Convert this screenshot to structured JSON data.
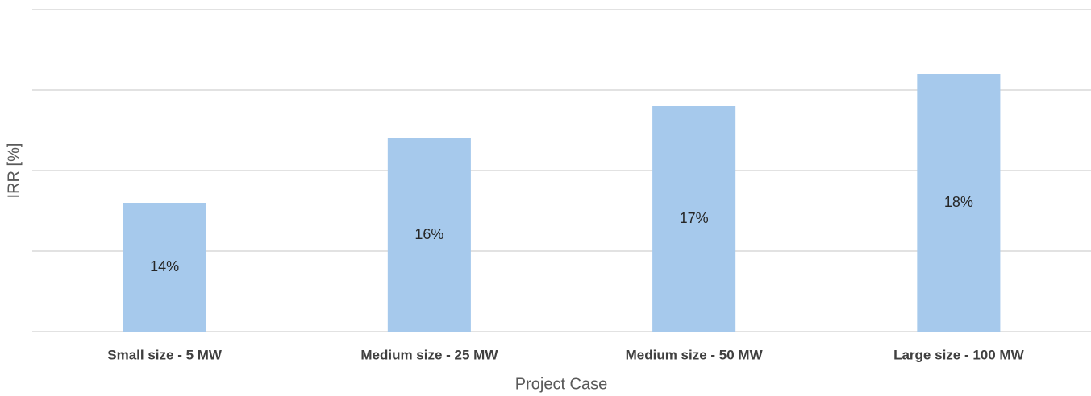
{
  "chart_data": {
    "type": "bar",
    "x_label": "Project Case",
    "y_label": "IRR [%]",
    "categories": [
      "Small size - 5 MW",
      "Medium size - 25 MW",
      "Medium size - 50 MW",
      "Large size - 100 MW"
    ],
    "values": [
      14,
      16,
      17,
      18
    ],
    "value_labels": [
      "14%",
      "16%",
      "17%",
      "18%"
    ],
    "color": "#a6c9ec",
    "ylim": [
      10,
      20
    ],
    "yticks": [
      10,
      12.5,
      15,
      17.5,
      20
    ],
    "grid": true
  }
}
